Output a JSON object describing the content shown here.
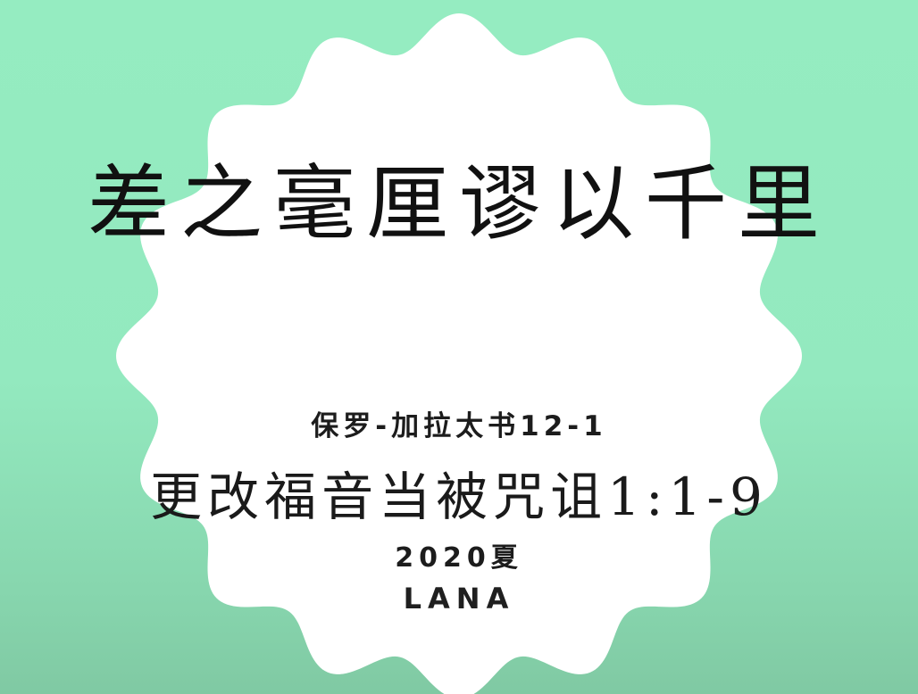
{
  "slide": {
    "title": "差之毫厘谬以千里",
    "reference": "保罗-加拉太书12-1",
    "subtitle": "更改福音当被咒诅1:1-9",
    "year": "2020夏",
    "author": "LANA"
  },
  "colors": {
    "background": "#95ecc1",
    "badge": "#ffffff",
    "text": "#111111"
  }
}
